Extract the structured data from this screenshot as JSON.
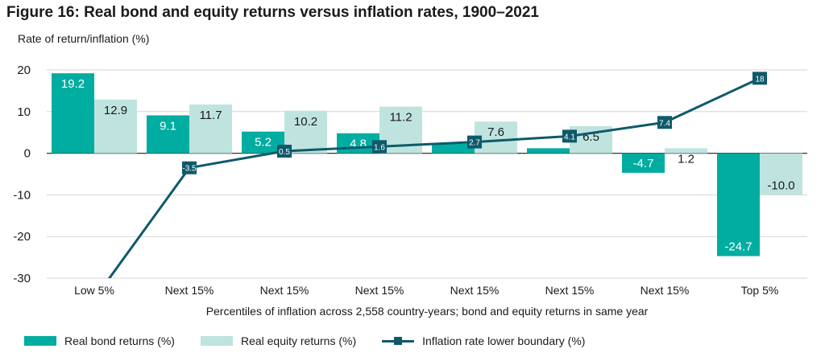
{
  "title": "Figure 16: Real bond and equity returns versus inflation rates, 1900–2021",
  "colors": {
    "bond": "#00ADA0",
    "equity": "#BFE4DF",
    "inflation": "#0E5A6B",
    "grid": "#D6D6D6",
    "axis": "#333333"
  },
  "chart_data": {
    "type": "bar",
    "title": "Figure 16: Real bond and equity returns versus inflation rates, 1900–2021",
    "ylabel": "Rate of return/inflation (%)",
    "xlabel": "Percentiles of inflation across 2,558 country-years; bond and equity returns in same year",
    "ylim": [
      -30,
      20
    ],
    "yticks": [
      20,
      10,
      0,
      -10,
      -20,
      -30
    ],
    "grid": true,
    "legend_position": "bottom",
    "categories": [
      "Low 5%",
      "Next 15%",
      "Next 15%",
      "Next 15%",
      "Next 15%",
      "Next 15%",
      "Next 15%",
      "Top 5%"
    ],
    "series": [
      {
        "name": "Real bond returns (%)",
        "type": "bar",
        "values": [
          19.2,
          9.1,
          5.2,
          4.8,
          2.3,
          1.2,
          -4.7,
          -24.7
        ],
        "labels": [
          "19.2",
          "9.1",
          "5.2",
          "4.8",
          "",
          "",
          "-4.7",
          "-24.7"
        ]
      },
      {
        "name": "Real equity returns (%)",
        "type": "bar",
        "values": [
          12.9,
          11.7,
          10.2,
          11.2,
          7.6,
          6.5,
          1.2,
          -10.0
        ],
        "labels": [
          "12.9",
          "11.7",
          "10.2",
          "11.2",
          "7.6",
          "6.5",
          "1.2",
          "-10.0"
        ]
      },
      {
        "name": "Inflation rate lower boundary (%)",
        "type": "line",
        "values": [
          -35,
          -3.5,
          0.5,
          1.6,
          2.7,
          4.1,
          7.4,
          18
        ],
        "labels": [
          "",
          "-3.5",
          "0.5",
          "1.6",
          "2.7",
          "4.1",
          "7.4",
          "18"
        ]
      }
    ]
  },
  "legend": {
    "bond": "Real bond returns (%)",
    "equity": "Real equity returns (%)",
    "inflation": "Inflation rate lower boundary (%)"
  }
}
